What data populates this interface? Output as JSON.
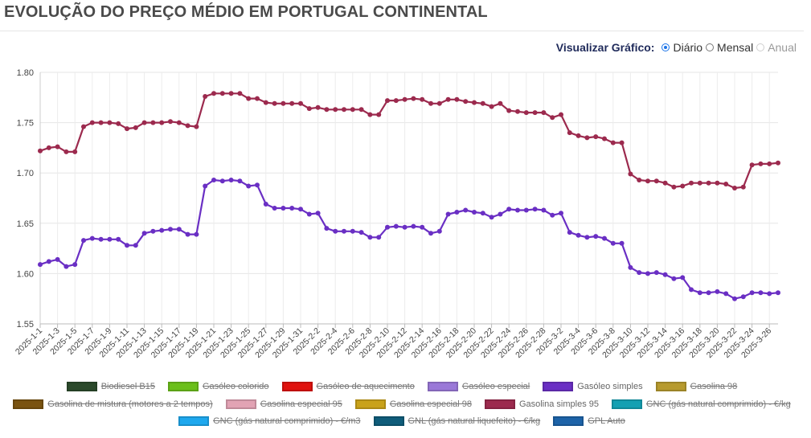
{
  "page": {
    "title": "EVOLUÇÃO DO PREÇO MÉDIO EM PORTUGAL CONTINENTAL"
  },
  "view_toggle": {
    "label": "Visualizar Gráfico:",
    "options": [
      {
        "label": "Diário",
        "selected": true,
        "disabled": false
      },
      {
        "label": "Mensal",
        "selected": false,
        "disabled": false
      },
      {
        "label": "Anual",
        "selected": false,
        "disabled": true
      }
    ]
  },
  "legend": {
    "rows": [
      [
        {
          "label": "Biodiesel B15",
          "color": "#2b4a2b",
          "hidden": true
        },
        {
          "label": "Gasóleo colorido",
          "color": "#6bbf1a",
          "hidden": true
        },
        {
          "label": "Gasóleo de aquecimento",
          "color": "#e0120e",
          "hidden": true
        },
        {
          "label": "Gasóleo especial",
          "color": "#9a78d8",
          "hidden": true
        },
        {
          "label": "Gasóleo simples",
          "color": "#6a2fc4",
          "hidden": false
        },
        {
          "label": "Gasolina 98",
          "color": "#b79a2e",
          "hidden": true
        }
      ],
      [
        {
          "label": "Gasolina de mistura (motores a 2 tempos)",
          "color": "#7a5310",
          "hidden": true
        },
        {
          "label": "Gasolina especial 95",
          "color": "#e2a3b4",
          "hidden": true
        },
        {
          "label": "Gasolina especial 98",
          "color": "#c9a21a",
          "hidden": true
        },
        {
          "label": "Gasolina simples 95",
          "color": "#9c2a4e",
          "hidden": false
        },
        {
          "label": "GNC (gás natural comprimido) - €/kg",
          "color": "#14a0b2",
          "hidden": true
        }
      ],
      [
        {
          "label": "GNC (gás natural comprimido) - €/m3",
          "color": "#1ea8ee",
          "hidden": true
        },
        {
          "label": "GNL (gás natural liquefeito) - €/kg",
          "color": "#0f5c7a",
          "hidden": true
        },
        {
          "label": "GPL Auto",
          "color": "#1d63a8",
          "hidden": true
        }
      ]
    ]
  },
  "chart_data": {
    "type": "line",
    "y_ticks": [
      "1.55",
      "1.60",
      "1.65",
      "1.70",
      "1.75",
      "1.80"
    ],
    "ylim": [
      1.55,
      1.8
    ],
    "grid": true,
    "x_tick_labels": [
      "2025-1-1",
      "2025-1-3",
      "2025-1-5",
      "2025-1-7",
      "2025-1-9",
      "2025-1-11",
      "2025-1-13",
      "2025-1-15",
      "2025-1-17",
      "2025-1-19",
      "2025-1-21",
      "2025-1-23",
      "2025-1-25",
      "2025-1-27",
      "2025-1-29",
      "2025-1-31",
      "2025-2-2",
      "2025-2-4",
      "2025-2-6",
      "2025-2-8",
      "2025-2-10",
      "2025-2-12",
      "2025-2-14",
      "2025-2-16",
      "2025-2-18",
      "2025-2-20",
      "2025-2-22",
      "2025-2-24",
      "2025-2-26",
      "2025-2-28",
      "2025-3-2",
      "2025-3-4",
      "2025-3-6",
      "2025-3-8",
      "2025-3-10",
      "2025-3-12",
      "2025-3-14",
      "2025-3-16",
      "2025-3-18",
      "2025-3-20",
      "2025-3-22",
      "2025-3-24",
      "2025-3-26"
    ],
    "x_dates": [
      "2025-1-1",
      "2025-1-2",
      "2025-1-3",
      "2025-1-4",
      "2025-1-5",
      "2025-1-6",
      "2025-1-7",
      "2025-1-8",
      "2025-1-9",
      "2025-1-10",
      "2025-1-11",
      "2025-1-12",
      "2025-1-13",
      "2025-1-14",
      "2025-1-15",
      "2025-1-16",
      "2025-1-17",
      "2025-1-18",
      "2025-1-19",
      "2025-1-20",
      "2025-1-21",
      "2025-1-22",
      "2025-1-23",
      "2025-1-24",
      "2025-1-25",
      "2025-1-26",
      "2025-1-27",
      "2025-1-28",
      "2025-1-29",
      "2025-1-30",
      "2025-1-31",
      "2025-2-1",
      "2025-2-2",
      "2025-2-3",
      "2025-2-4",
      "2025-2-5",
      "2025-2-6",
      "2025-2-7",
      "2025-2-8",
      "2025-2-9",
      "2025-2-10",
      "2025-2-11",
      "2025-2-12",
      "2025-2-13",
      "2025-2-14",
      "2025-2-15",
      "2025-2-16",
      "2025-2-17",
      "2025-2-18",
      "2025-2-19",
      "2025-2-20",
      "2025-2-21",
      "2025-2-22",
      "2025-2-23",
      "2025-2-24",
      "2025-2-25",
      "2025-2-26",
      "2025-2-27",
      "2025-2-28",
      "2025-3-1",
      "2025-3-2",
      "2025-3-3",
      "2025-3-4",
      "2025-3-5",
      "2025-3-6",
      "2025-3-7",
      "2025-3-8",
      "2025-3-9",
      "2025-3-10",
      "2025-3-11",
      "2025-3-12",
      "2025-3-13",
      "2025-3-14",
      "2025-3-15",
      "2025-3-16",
      "2025-3-17",
      "2025-3-18",
      "2025-3-19",
      "2025-3-20",
      "2025-3-21",
      "2025-3-22",
      "2025-3-23",
      "2025-3-24",
      "2025-3-25",
      "2025-3-26",
      "2025-3-27"
    ],
    "series": [
      {
        "name": "Gasolina simples 95",
        "color": "#9c2a4e",
        "values": [
          1.722,
          1.725,
          1.726,
          1.721,
          1.721,
          1.746,
          1.75,
          1.75,
          1.75,
          1.749,
          1.744,
          1.745,
          1.75,
          1.75,
          1.75,
          1.751,
          1.75,
          1.747,
          1.746,
          1.776,
          1.779,
          1.779,
          1.779,
          1.779,
          1.774,
          1.774,
          1.77,
          1.769,
          1.769,
          1.769,
          1.769,
          1.764,
          1.765,
          1.763,
          1.763,
          1.763,
          1.763,
          1.763,
          1.758,
          1.758,
          1.772,
          1.772,
          1.773,
          1.774,
          1.773,
          1.769,
          1.769,
          1.773,
          1.773,
          1.771,
          1.77,
          1.769,
          1.766,
          1.769,
          1.762,
          1.761,
          1.76,
          1.76,
          1.76,
          1.755,
          1.758,
          1.74,
          1.737,
          1.735,
          1.736,
          1.734,
          1.73,
          1.73,
          1.699,
          1.693,
          1.692,
          1.692,
          1.69,
          1.686,
          1.687,
          1.69,
          1.69,
          1.69,
          1.69,
          1.689,
          1.685,
          1.686,
          1.708,
          1.709,
          1.709,
          1.71
        ]
      },
      {
        "name": "Gasóleo simples",
        "color": "#6a2fc4",
        "values": [
          1.609,
          1.612,
          1.614,
          1.607,
          1.609,
          1.633,
          1.635,
          1.634,
          1.634,
          1.634,
          1.628,
          1.628,
          1.64,
          1.642,
          1.643,
          1.644,
          1.644,
          1.639,
          1.639,
          1.687,
          1.693,
          1.692,
          1.693,
          1.692,
          1.687,
          1.688,
          1.669,
          1.665,
          1.665,
          1.665,
          1.664,
          1.659,
          1.66,
          1.645,
          1.642,
          1.642,
          1.642,
          1.641,
          1.636,
          1.636,
          1.646,
          1.647,
          1.646,
          1.647,
          1.646,
          1.64,
          1.642,
          1.659,
          1.661,
          1.663,
          1.661,
          1.66,
          1.656,
          1.659,
          1.664,
          1.663,
          1.663,
          1.664,
          1.663,
          1.658,
          1.66,
          1.641,
          1.638,
          1.636,
          1.637,
          1.635,
          1.63,
          1.63,
          1.606,
          1.601,
          1.6,
          1.601,
          1.599,
          1.595,
          1.596,
          1.584,
          1.581,
          1.581,
          1.582,
          1.58,
          1.575,
          1.577,
          1.581,
          1.581,
          1.58,
          1.581
        ]
      }
    ]
  }
}
